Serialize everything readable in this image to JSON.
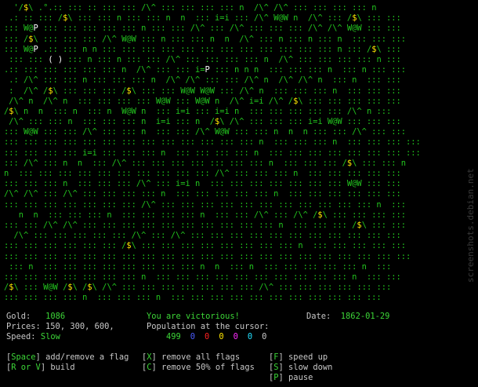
{
  "map_rows": [
    "  '/$\\ .°.:: ::: :: ::: ::: /\\^ ::: ::: ::: ::: n  /\\^ /\\^ ::: ::: ::: ::: n  ",
    " .: :: ::: /$\\ ::: ::: n ::: ::: n  n  ::: i=i ::: /\\^ W@W n  /\\^ ::: /$\\ ::: ::: ",
    "::: W@P ::: ::: ::: ::: ::: n ::: ::: /\\^ ::: /\\^ ::: ::: ::: /\\^ /\\^ W@W ::: ::: ",
    "::: /$\\ ::: ::: ::: /\\^ W@W ::: n ::: ::: n  n  /\\^ ::: n ::: n ::: n  ::: ::: ::: ",
    "::: W@P .:: ::: n n ::: ::: ::: ::: ::: ::: ::: ::: ::: ::: ::: ::: n ::: /$\\ ::: ",
    " ::: ::: ( ) ::: n ::: n ::: ::: /\\^ ::: ::: ::: ::: n  /\\^ ::: ::: ::: ::: n ::: ",
    ".:: ::: ::: ::: ::: ::: n  /\\^ ::: ::: i=P ::: n n n  ::: ::: ::: n  ::: n ::: ::: ",
    " .: /\\^ ::: ::: n ::: ::: ::: n  /\\^ /\\^ ::: ::: /\\^ n  /\\^ /\\^ n  ::: n  ::: ::: ",
    " :  /\\^ /$\\ ::: ::: ::: /$\\ ::: ::: W@W W@W ::: /\\^ n  ::: ::: ::: n  ::: ::: ::: ",
    " /\\^ n  /\\^ n  ::: ::: ::: ::: W@W ::: W@W n  /\\^ i=i /\\^ /$\\ ::: ::: ::: ::: ::: ",
    "/$\\ n  n  ::: n  ::: n  W@W n  ::: i=i ::: i=i n  ::: ::: ::: ::: ::: /\\^ n ::: ",
    " /\\^ ::: ::: n  ::: ::: ::: n  i=i ::: n  /$\\ /\\^ ::: ::: ::: i=i W@W ::: ::: ::: ",
    "::: W@W ::: ::: /\\^ ::: ::: n  ::: ::: /\\^ W@W ::: ::: n  n  n ::: ::: /\\^ ::: ::: ",
    "::: ::: ::: ::: ::: ::: ::: ::: ::: ::: ::: ::: ::: n  ::: ::: ::: n  ::: ::: ::: ::: ",
    "::: ::: ::: ::: i=i ::: ::: ::: n  ::: ::: ::: ::: n  ::: ::: ::: ::: ::: ::: ::: ::: ",
    "::: /\\^ ::: n  n  ::: /\\^ ::: ::: ::: ::: ::: ::: ::: n  ::: ::: ::: /$\\ ::: ::: n ",
    "n  ::: ::: ::: ::: ::: ::: ::: ::: ::: ::: /\\^ ::: ::: ::: n  ::: ::: ::: ::: ::: ",
    "::: ::: ::: n  ::: ::: ::: /\\^ ::: i=i n  ::: ::: ::: ::: ::: ::: ::: W@W ::: ::: ",
    "/\\^ /\\^ ::: /\\^ ::: ::: ::: ::: n  ::: ::: ::: ::: ::: n  ::: ::: ::: ::: ::: ::: ",
    "::: ::: ::: ::: ::: ::: ::: /\\^ ::: ::: ::: ::: ::: ::: ::: ::: ::: ::: ::: n  ::: ",
    "   n  n  ::: ::: ::: n  ::: ::: ::: ::: n  ::: ::: /\\^ ::: /\\^ /$\\ ::: ::: ::: ::: ",
    "::: ::: /\\^ /\\^ ::: ::: ::: ::: ::: ::: ::: ::: ::: ::: n  ::: ::: ::: /$\\ ::: ::: ",
    "  /\\^ ::: ::: ::: ::: ::: /\\^ ::: /\\^ ::: ::: ::: ::: ::: ::: ::: ::: ::: ::: ::: ",
    "::: ::: ::: ::: ::: ::: /$\\ ::: ::: ::: ::: ::: ::: ::: ::: n  ::: ::: ::: ::: ::: ",
    "::: ::: ::: ::: ::: ::: ::: ::: ::: ::: ::: ::: ::: ::: ::: ::: ::: ::: ::: ::: ::: ",
    " ::: n  ::: ::: ::: ::: ::: ::: ::: ::: n  n  ::: n  ::: ::: ::: ::: ::: n  ::: ",
    "::: ::: ::: ::: ::: ::: ::: n  ::: ::: ::: ::: ::: ::: ::: ::: ::: ::: n  ::: ::: ",
    "/$\\ ::: W@W /$\\ /$\\ /\\^ ::: ::: ::: ::: ::: ::: ::: /\\^ ::: ::: ::: ::: ::: ::: ",
    "::: ::: ::: ::: n  ::: ::: ::: n  ::: ::: ::: ::: ::: ::: ::: ::: ::: ::: ::: ",
    "::: ::: ::: ::: /\\^ ::: ::: ::: ::: ::: ::: /\\^ ::: ::: ::: ::: ::: ::: ::: /\\^ "
  ],
  "status": {
    "gold_label": "Gold:",
    "gold_value": "1086",
    "victory": "You are victorious!",
    "date_label": "Date:",
    "date_value": "1862-01-29",
    "prices": "Prices: 150, 300, 600,",
    "population_label": "Population at the cursor:",
    "speed_label": "Speed:",
    "speed_value": "Slow"
  },
  "population": [
    {
      "value": "499",
      "color": "#3cd637"
    },
    {
      "value": "0",
      "color": "#4a5cff"
    },
    {
      "value": "0",
      "color": "#ff2020"
    },
    {
      "value": "0",
      "color": "#ffe600"
    },
    {
      "value": "0",
      "color": "#ff2bff"
    },
    {
      "value": "0",
      "color": "#22e0ff"
    },
    {
      "value": "0",
      "color": "#c8c8c8"
    }
  ],
  "help": {
    "space_key": "Space",
    "space_text": " add/remove a flag",
    "rv_key": "R or V",
    "rv_text": " build",
    "x_key": "X",
    "x_text": " remove all flags",
    "c_key": "C",
    "c_text": " remove 50% of flags",
    "f_key": "F",
    "f_text": " speed up",
    "s_key": "S",
    "s_text": " slow down",
    "p_key": "P",
    "p_text": " pause"
  },
  "watermark": "screenshots.debian.net",
  "colors": {
    "terrain": "#22c41e",
    "player": "#ffffff",
    "gold": "#ffe600",
    "text": "#c8c8c8",
    "accent": "#3cd637"
  }
}
